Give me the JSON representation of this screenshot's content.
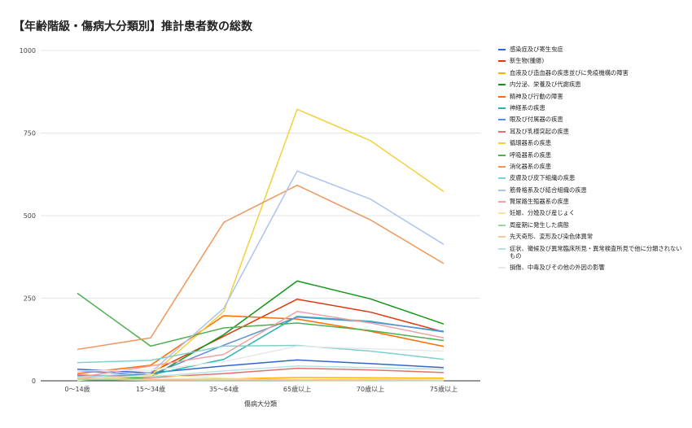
{
  "chart_data": {
    "type": "line",
    "title": "【年齢階級・傷病大分類別】推計患者数の総数",
    "xlabel": "傷病大分類",
    "ylabel": "",
    "ylim": [
      0,
      1000
    ],
    "yticks": [
      0,
      250,
      500,
      750,
      1000
    ],
    "grid": true,
    "legend_position": "right",
    "categories": [
      "0～14歳",
      "15～34歳",
      "35～64歳",
      "65歳以上",
      "70歳以上",
      "75歳以上"
    ],
    "series": [
      {
        "name": "感染症及び寄生虫症",
        "color": "#3366cc",
        "values": [
          35,
          24,
          45,
          63,
          52,
          40
        ]
      },
      {
        "name": "新生物(腫瘍)",
        "color": "#dc3912",
        "values": [
          8,
          25,
          135,
          247,
          208,
          148
        ]
      },
      {
        "name": "血液及び造血器の疾患並びに免疫機構の障害",
        "color": "#ffb300",
        "values": [
          3,
          3,
          6,
          10,
          9,
          8
        ]
      },
      {
        "name": "内分泌、栄養及び代謝疾患",
        "color": "#109618",
        "values": [
          5,
          10,
          140,
          302,
          248,
          172
        ]
      },
      {
        "name": "精神及び行動の障害",
        "color": "#ff6d00",
        "values": [
          22,
          47,
          197,
          187,
          150,
          104
        ]
      },
      {
        "name": "神経系の疾患",
        "color": "#26b5b5",
        "values": [
          15,
          18,
          65,
          195,
          180,
          148
        ]
      },
      {
        "name": "眼及び付属器の疾患",
        "color": "#5b8fd6",
        "values": [
          30,
          18,
          108,
          193,
          178,
          150
        ]
      },
      {
        "name": "耳及び乳様突起の疾患",
        "color": "#e46f6f",
        "values": [
          18,
          10,
          22,
          38,
          33,
          25
        ]
      },
      {
        "name": "循環器系の疾患",
        "color": "#f4d03f",
        "values": [
          2,
          15,
          210,
          822,
          727,
          573
        ]
      },
      {
        "name": "呼吸器系の疾患",
        "color": "#4caf50",
        "values": [
          265,
          105,
          160,
          175,
          152,
          122
        ]
      },
      {
        "name": "消化器系の疾患",
        "color": "#f0965a",
        "values": [
          95,
          130,
          480,
          592,
          487,
          355
        ]
      },
      {
        "name": "皮膚及び皮下組織の疾患",
        "color": "#7fd0d0",
        "values": [
          55,
          62,
          105,
          107,
          90,
          65
        ]
      },
      {
        "name": "筋骨格系及び結合組織の疾患",
        "color": "#a9c4ef",
        "values": [
          10,
          25,
          220,
          635,
          550,
          413
        ]
      },
      {
        "name": "腎尿路生殖器系の疾患",
        "color": "#efa0a0",
        "values": [
          10,
          45,
          80,
          210,
          175,
          130
        ]
      },
      {
        "name": "妊娠、分娩及び産じょく",
        "color": "#f9e79f",
        "values": [
          1,
          18,
          8,
          1,
          1,
          1
        ]
      },
      {
        "name": "周産期に発生した病態",
        "color": "#9fd49f",
        "values": [
          5,
          1,
          1,
          1,
          1,
          1
        ]
      },
      {
        "name": "先天奇形、変形及び染色体異常",
        "color": "#f8c6a0",
        "values": [
          8,
          5,
          5,
          3,
          3,
          2
        ]
      },
      {
        "name": "症状、徴候及び異常臨床所見・異常検査所見で他に分類されないもの",
        "color": "#b5e3e3",
        "values": [
          12,
          12,
          30,
          45,
          40,
          35
        ]
      },
      {
        "name": "損傷、中毒及びその他の外因の影響",
        "color": "#e8e8e8",
        "values": [
          30,
          32,
          58,
          105,
          97,
          90
        ]
      }
    ]
  }
}
